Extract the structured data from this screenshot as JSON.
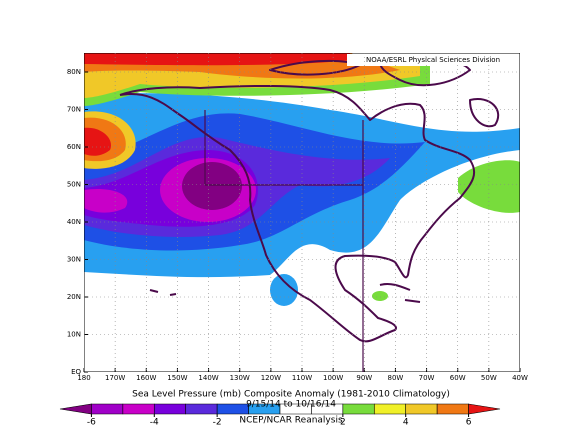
{
  "credit": "NOAA/ESRL Physical Sciences Division",
  "map": {
    "lat_labels": [
      "EQ",
      "10N",
      "20N",
      "30N",
      "40N",
      "50N",
      "60N",
      "70N",
      "80N"
    ],
    "lon_labels": [
      "180",
      "170W",
      "160W",
      "150W",
      "140W",
      "130W",
      "120W",
      "110W",
      "100W",
      "90W",
      "80W",
      "70W",
      "60W",
      "50W",
      "40W"
    ]
  },
  "caption": {
    "title": "Sea Level Pressure (mb) Composite Anomaly (1981-2010 Climatology)",
    "dates": "9/15/14 to 10/16/14",
    "source": "NCEP/NCAR Reanalysis"
  },
  "colorbar": {
    "range": [
      -7,
      7
    ],
    "ticks": [
      -6,
      -4,
      -2,
      2,
      4,
      6
    ],
    "colors": [
      "#820082",
      "#a000c8",
      "#c800c8",
      "#7800dc",
      "#5a2adc",
      "#1e50e6",
      "#28a0f0",
      "#ffffff",
      "#ffffff",
      "#78dc3c",
      "#f0f028",
      "#f0c828",
      "#f07814",
      "#e61414"
    ]
  }
}
